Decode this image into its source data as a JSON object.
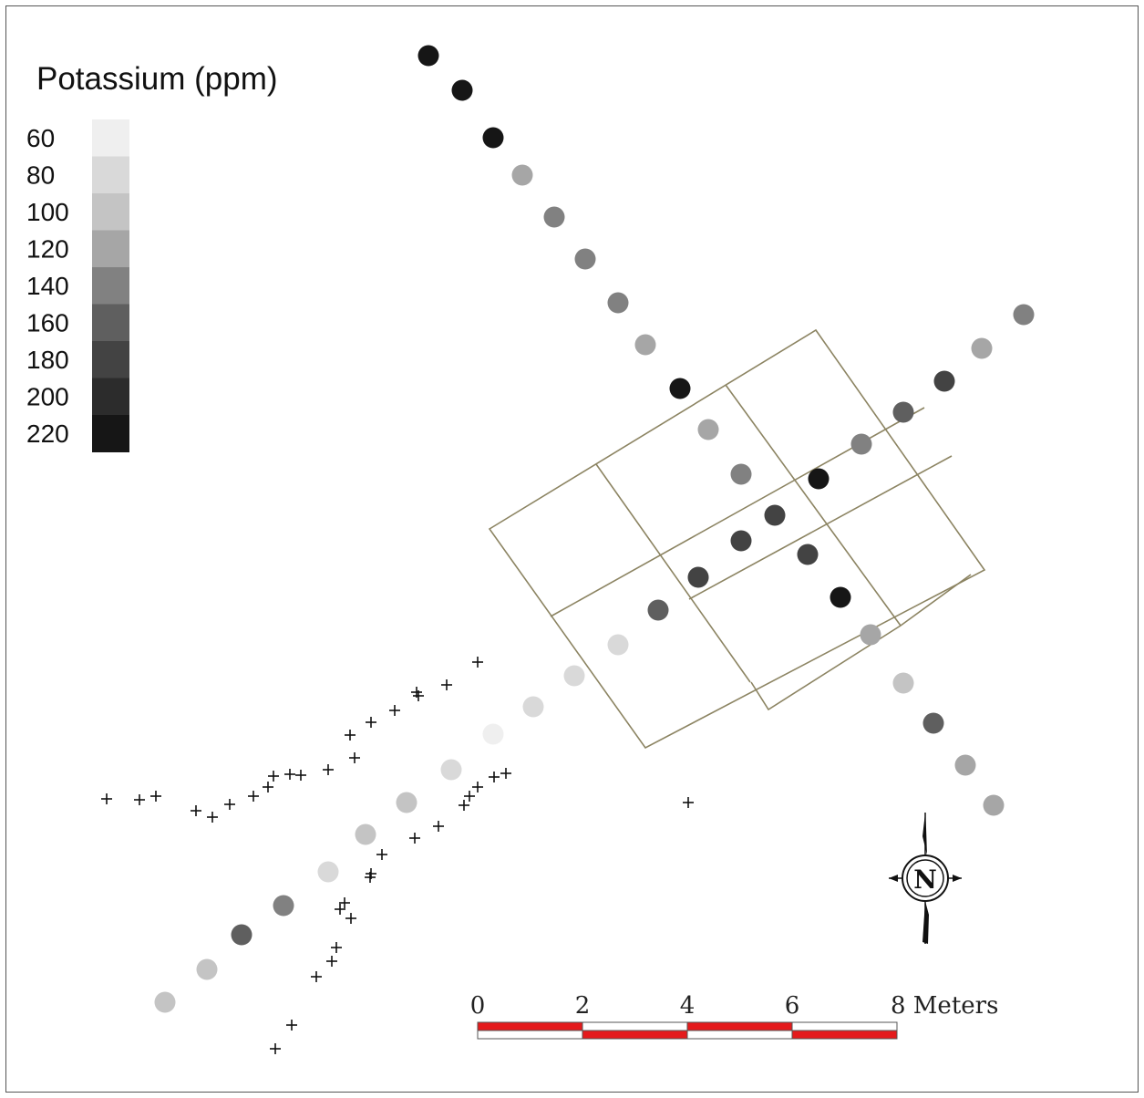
{
  "legend": {
    "title": "Potassium (ppm)",
    "items": [
      {
        "label": "60",
        "color": "#efefef"
      },
      {
        "label": "80",
        "color": "#d9d9d9"
      },
      {
        "label": "100",
        "color": "#c4c4c4"
      },
      {
        "label": "120",
        "color": "#a6a6a6"
      },
      {
        "label": "140",
        "color": "#818181"
      },
      {
        "label": "160",
        "color": "#5f5f5f"
      },
      {
        "label": "180",
        "color": "#434343"
      },
      {
        "label": "200",
        "color": "#2c2c2c"
      },
      {
        "label": "220",
        "color": "#161616"
      }
    ]
  },
  "scale_bar": {
    "labels": [
      "0",
      "2",
      "4",
      "6",
      "8 Meters"
    ],
    "colors": {
      "fill": "#e41a1c",
      "alt": "#ffffff"
    }
  },
  "north_arrow": {
    "label": "N"
  },
  "samples": [
    {
      "id": 1,
      "value": 210,
      "p": [
        470,
        61
      ]
    },
    {
      "id": 2,
      "value": 210,
      "p": [
        507,
        99
      ]
    },
    {
      "id": 3,
      "value": 210,
      "p": [
        541,
        151
      ]
    },
    {
      "id": 4,
      "value": 120,
      "p": [
        573,
        192
      ]
    },
    {
      "id": 5,
      "value": 140,
      "p": [
        608,
        238
      ]
    },
    {
      "id": 6,
      "value": 140,
      "p": [
        642,
        284
      ]
    },
    {
      "id": 7,
      "value": 140,
      "p": [
        678,
        332
      ]
    },
    {
      "id": 8,
      "value": 120,
      "p": [
        708,
        378
      ]
    },
    {
      "id": 9,
      "value": 210,
      "p": [
        746,
        426
      ]
    },
    {
      "id": 10,
      "value": 120,
      "p": [
        777,
        471
      ]
    },
    {
      "id": 11,
      "value": 140,
      "p": [
        813,
        520
      ]
    },
    {
      "id": 12,
      "value": 170,
      "p": [
        850,
        565
      ]
    },
    {
      "id": 13,
      "value": 170,
      "p": [
        886,
        608
      ]
    },
    {
      "id": 14,
      "value": 210,
      "p": [
        922,
        655
      ]
    },
    {
      "id": 15,
      "value": 120,
      "p": [
        955,
        696
      ]
    },
    {
      "id": 16,
      "value": 100,
      "p": [
        991,
        749
      ]
    },
    {
      "id": 17,
      "value": 150,
      "p": [
        1024,
        793
      ]
    },
    {
      "id": 18,
      "value": 120,
      "p": [
        1059,
        839
      ]
    },
    {
      "id": 19,
      "value": 120,
      "p": [
        1090,
        883
      ]
    },
    {
      "id": 20,
      "value": 140,
      "p": [
        1123,
        345
      ]
    },
    {
      "id": 21,
      "value": 110,
      "p": [
        1077,
        382
      ]
    },
    {
      "id": 22,
      "value": 180,
      "p": [
        1036,
        418
      ]
    },
    {
      "id": 23,
      "value": 160,
      "p": [
        991,
        452
      ]
    },
    {
      "id": 24,
      "value": 130,
      "p": [
        945,
        487
      ]
    },
    {
      "id": 25,
      "value": 210,
      "p": [
        898,
        525
      ]
    },
    {
      "id": 26,
      "value": 180,
      "p": [
        813,
        593
      ]
    },
    {
      "id": 27,
      "value": 180,
      "p": [
        766,
        633
      ]
    },
    {
      "id": 28,
      "value": 160,
      "p": [
        722,
        669
      ]
    },
    {
      "id": 29,
      "value": 80,
      "p": [
        678,
        707
      ]
    },
    {
      "id": 30,
      "value": 80,
      "p": [
        630,
        741
      ]
    },
    {
      "id": 31,
      "value": 80,
      "p": [
        585,
        775
      ]
    },
    {
      "id": 32,
      "value": 60,
      "p": [
        541,
        805
      ]
    },
    {
      "id": 33,
      "value": 80,
      "p": [
        495,
        844
      ]
    },
    {
      "id": 34,
      "value": 100,
      "p": [
        446,
        880
      ]
    },
    {
      "id": 35,
      "value": 100,
      "p": [
        401,
        915
      ]
    },
    {
      "id": 36,
      "value": 80,
      "p": [
        360,
        956
      ]
    },
    {
      "id": 37,
      "value": 130,
      "p": [
        311,
        993
      ]
    },
    {
      "id": 38,
      "value": 150,
      "p": [
        265,
        1025
      ]
    },
    {
      "id": 39,
      "value": 100,
      "p": [
        227,
        1063
      ]
    },
    {
      "id": 40,
      "value": 100,
      "p": [
        181,
        1099
      ]
    }
  ]
}
